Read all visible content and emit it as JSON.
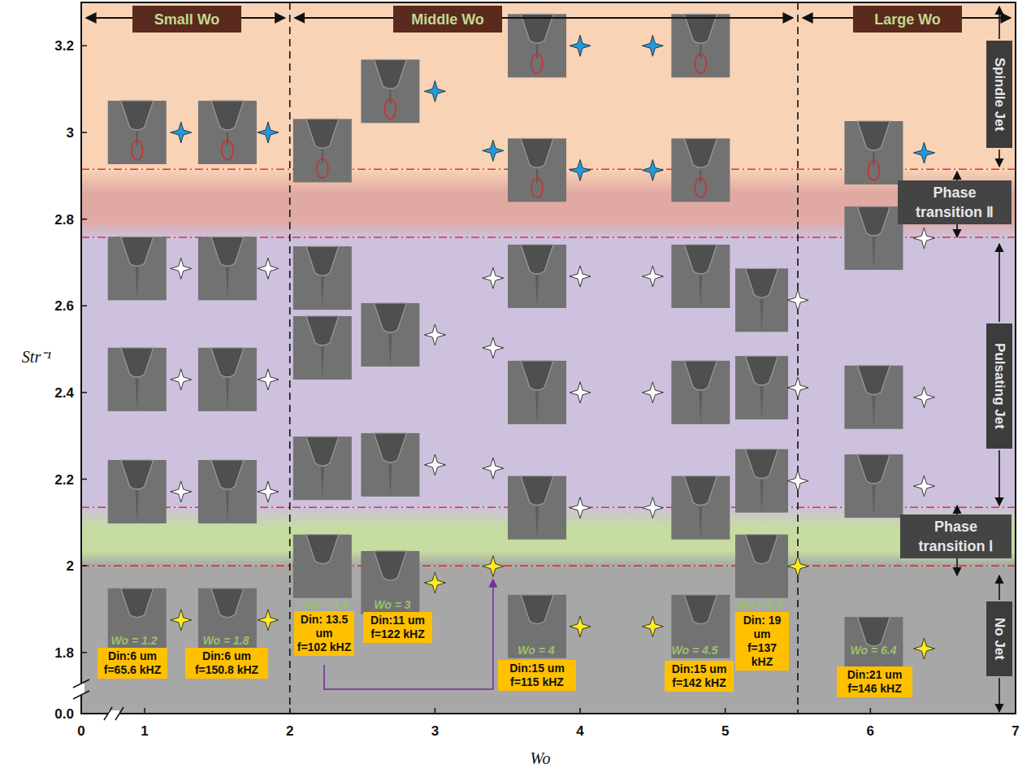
{
  "chart_data": {
    "type": "scatter",
    "xlabel": "Wo",
    "ylabel": "Str⁻¹",
    "xlim": [
      0.563,
      7
    ],
    "ylim": [
      1.659,
      3.3
    ],
    "xticks": [
      1,
      2,
      3,
      4,
      5,
      6,
      7
    ],
    "yticks": [
      1.8,
      2,
      2.2,
      2.4,
      2.6,
      2.8,
      3,
      3.2
    ],
    "x_break_label": "0",
    "y_break_label": "0.0",
    "marker": "star",
    "grid": false,
    "groups": [
      {
        "name": "Small Wo",
        "range": [
          0.563,
          2
        ]
      },
      {
        "name": "Middle Wo",
        "range": [
          2,
          5.5
        ]
      },
      {
        "name": "Large Wo",
        "range": [
          5.5,
          7
        ]
      }
    ],
    "regions": [
      {
        "name": "Spindle Jet",
        "range": [
          2.915,
          3.3
        ],
        "color": "#f9d3b6"
      },
      {
        "name": "Phase transition Ⅱ",
        "range": [
          2.758,
          2.915
        ],
        "color": "#e0a9a2"
      },
      {
        "name": "Pulsating Jet",
        "range": [
          2.135,
          2.758
        ],
        "color": "#cdc1dd"
      },
      {
        "name": "Phase transition Ⅰ",
        "range": [
          2.0,
          2.135
        ],
        "color": "#c6dca0"
      },
      {
        "name": "No Jet",
        "range": [
          1.659,
          2.0
        ],
        "color": "#a7a7a7"
      }
    ],
    "series": [
      {
        "name": "Wo = 1.2",
        "din": "Din:6 um",
        "f": "f=65.6 kHZ",
        "x": [
          1.25,
          1.25,
          1.25,
          1.25,
          1.25
        ],
        "values": [
          3.0,
          2.686,
          2.43,
          2.171,
          1.875
        ],
        "colors": [
          "#1e9be0",
          "#ffffff",
          "#ffffff",
          "#ffffff",
          "#ffeb1a"
        ]
      },
      {
        "name": "Wo = 1.8",
        "din": "Din:6 um",
        "f": "f=150.8 kHZ",
        "x": [
          1.85,
          1.85,
          1.85,
          1.85,
          1.85
        ],
        "values": [
          3.0,
          2.686,
          2.43,
          2.171,
          1.875
        ],
        "colors": [
          "#1e9be0",
          "#ffffff",
          "#ffffff",
          "#ffffff",
          "#ffeb1a"
        ]
      },
      {
        "name": "Wo = 3",
        "din": "Din:11 um",
        "f": "f=122 kHZ",
        "x": [
          3.0,
          3.0,
          3.0,
          3.0
        ],
        "values": [
          3.095,
          2.533,
          2.233,
          1.961
        ],
        "colors": [
          "#1e9be0",
          "#ffffff",
          "#ffffff",
          "#ffeb1a"
        ]
      },
      {
        "name": "Wo = 3.4",
        "din": "Din: 13.5 um",
        "f": "f=102 kHZ",
        "x": [
          3.4,
          3.4,
          3.4,
          3.4,
          3.4
        ],
        "values": [
          2.958,
          2.664,
          2.503,
          2.225,
          1.999
        ],
        "colors": [
          "#1e9be0",
          "#ffffff",
          "#ffffff",
          "#ffffff",
          "#ffeb1a"
        ]
      },
      {
        "name": "Wo = 4",
        "din": "Din:15 um",
        "f": "f=115 kHZ",
        "x": [
          4.0,
          4.0,
          4.0,
          4.0,
          4.0,
          4.0
        ],
        "values": [
          3.2,
          2.913,
          2.668,
          2.4,
          2.134,
          1.86
        ],
        "colors": [
          "#1e9be0",
          "#1e9be0",
          "#ffffff",
          "#ffffff",
          "#ffffff",
          "#ffeb1a"
        ]
      },
      {
        "name": "Wo = 4.5",
        "din": "Din:15 um",
        "f": "f=142 kHZ",
        "x": [
          4.5,
          4.5,
          4.5,
          4.5,
          4.5,
          4.5
        ],
        "values": [
          3.2,
          2.913,
          2.668,
          2.4,
          2.134,
          1.86
        ],
        "colors": [
          "#1e9be0",
          "#1e9be0",
          "#ffffff",
          "#ffffff",
          "#ffffff",
          "#ffeb1a"
        ]
      },
      {
        "name": "Wo = 5.5",
        "din": "Din: 19 um",
        "f": "f=137 kHZ",
        "x": [
          5.5,
          5.5,
          5.5,
          5.5
        ],
        "values": [
          2.613,
          2.411,
          2.196,
          1.999
        ],
        "colors": [
          "#ffffff",
          "#ffffff",
          "#ffffff",
          "#ffeb1a"
        ]
      },
      {
        "name": "Wo = 6.4",
        "din": "Din:21 um",
        "f": "f=146 kHZ",
        "x": [
          6.37,
          6.37,
          6.37,
          6.37,
          6.37
        ],
        "values": [
          2.953,
          2.756,
          2.389,
          2.184,
          1.809
        ],
        "colors": [
          "#1e9be0",
          "#ffffff",
          "#ffffff",
          "#ffffff",
          "#ffeb1a"
        ]
      }
    ]
  }
}
